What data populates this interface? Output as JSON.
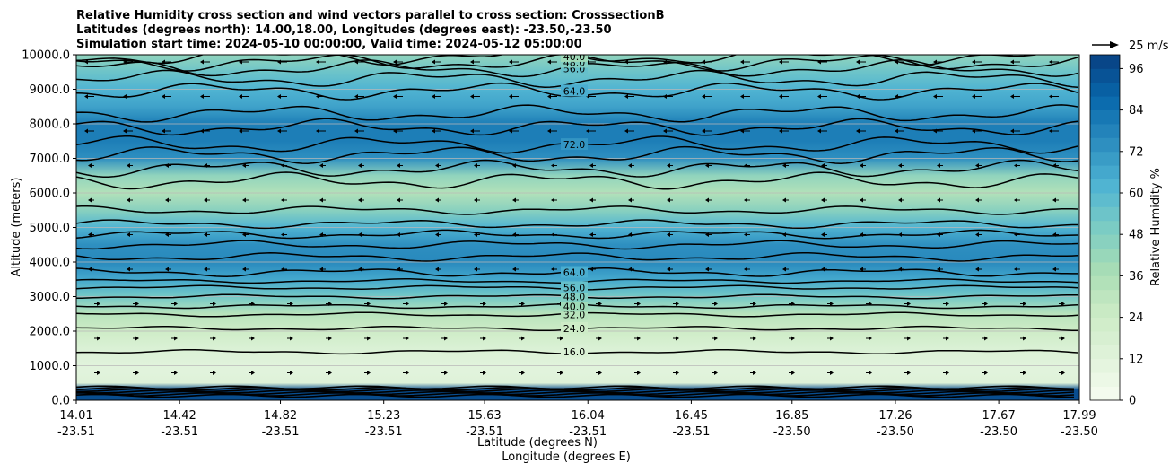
{
  "chart_data": {
    "type": "heatmap",
    "title_lines": [
      "Relative Humidity cross section and wind vectors parallel to cross section: CrosssectionB",
      "Latitudes (degrees north): 14.00,18.00, Longitudes (degrees east): -23.50,-23.50",
      "Simulation start time: 2024-05-10 00:00:00, Valid time: 2024-05-12 05:00:00"
    ],
    "ylabel": "Altitude (meters)",
    "xlabel_lat": "Latitude (degrees N)",
    "xlabel_lon": "Longitude (degrees E)",
    "ylim": [
      0,
      10000
    ],
    "y_ticks": [
      "0.0",
      "1000.0",
      "2000.0",
      "3000.0",
      "4000.0",
      "5000.0",
      "6000.0",
      "7000.0",
      "8000.0",
      "9000.0",
      "10000.0"
    ],
    "x_ticks": [
      {
        "lat": "14.01",
        "lon": "-23.51"
      },
      {
        "lat": "14.42",
        "lon": "-23.51"
      },
      {
        "lat": "14.82",
        "lon": "-23.51"
      },
      {
        "lat": "15.23",
        "lon": "-23.51"
      },
      {
        "lat": "15.63",
        "lon": "-23.51"
      },
      {
        "lat": "16.04",
        "lon": "-23.51"
      },
      {
        "lat": "16.45",
        "lon": "-23.51"
      },
      {
        "lat": "16.85",
        "lon": "-23.50"
      },
      {
        "lat": "17.26",
        "lon": "-23.50"
      },
      {
        "lat": "17.67",
        "lon": "-23.50"
      },
      {
        "lat": "17.99",
        "lon": "-23.50"
      }
    ],
    "colorbar": {
      "label": "Relative Humidity %",
      "range": [
        0,
        100
      ],
      "ticks": [
        "0",
        "12",
        "24",
        "36",
        "48",
        "60",
        "72",
        "84",
        "96"
      ]
    },
    "quiver_key": "25 m/s",
    "profile": {
      "altitudes": [
        0,
        300,
        500,
        800,
        1000,
        1500,
        2000,
        2500,
        3000,
        3500,
        4000,
        4500,
        5000,
        5500,
        6000,
        6500,
        7000,
        7500,
        8000,
        8500,
        9000,
        9500,
        10000
      ],
      "humidity": [
        96,
        96,
        14,
        12,
        12,
        16,
        24,
        32,
        52,
        66,
        76,
        74,
        62,
        46,
        34,
        44,
        74,
        80,
        80,
        68,
        62,
        54,
        44
      ]
    },
    "contour_labels": [
      {
        "text": "16.0",
        "alt": 1400
      },
      {
        "text": "24.0",
        "alt": 2080
      },
      {
        "text": "32.0",
        "alt": 2480
      },
      {
        "text": "40.0",
        "alt": 2720
      },
      {
        "text": "48.0",
        "alt": 3000
      },
      {
        "text": "56.0",
        "alt": 3260
      },
      {
        "text": "64.0",
        "alt": 3700
      },
      {
        "text": "72.0",
        "alt": 7400
      },
      {
        "text": "64.0",
        "alt": 8950
      },
      {
        "text": "56.0",
        "alt": 9600
      },
      {
        "text": "48.0",
        "alt": 9780
      },
      {
        "text": "40.0",
        "alt": 9950
      }
    ]
  }
}
